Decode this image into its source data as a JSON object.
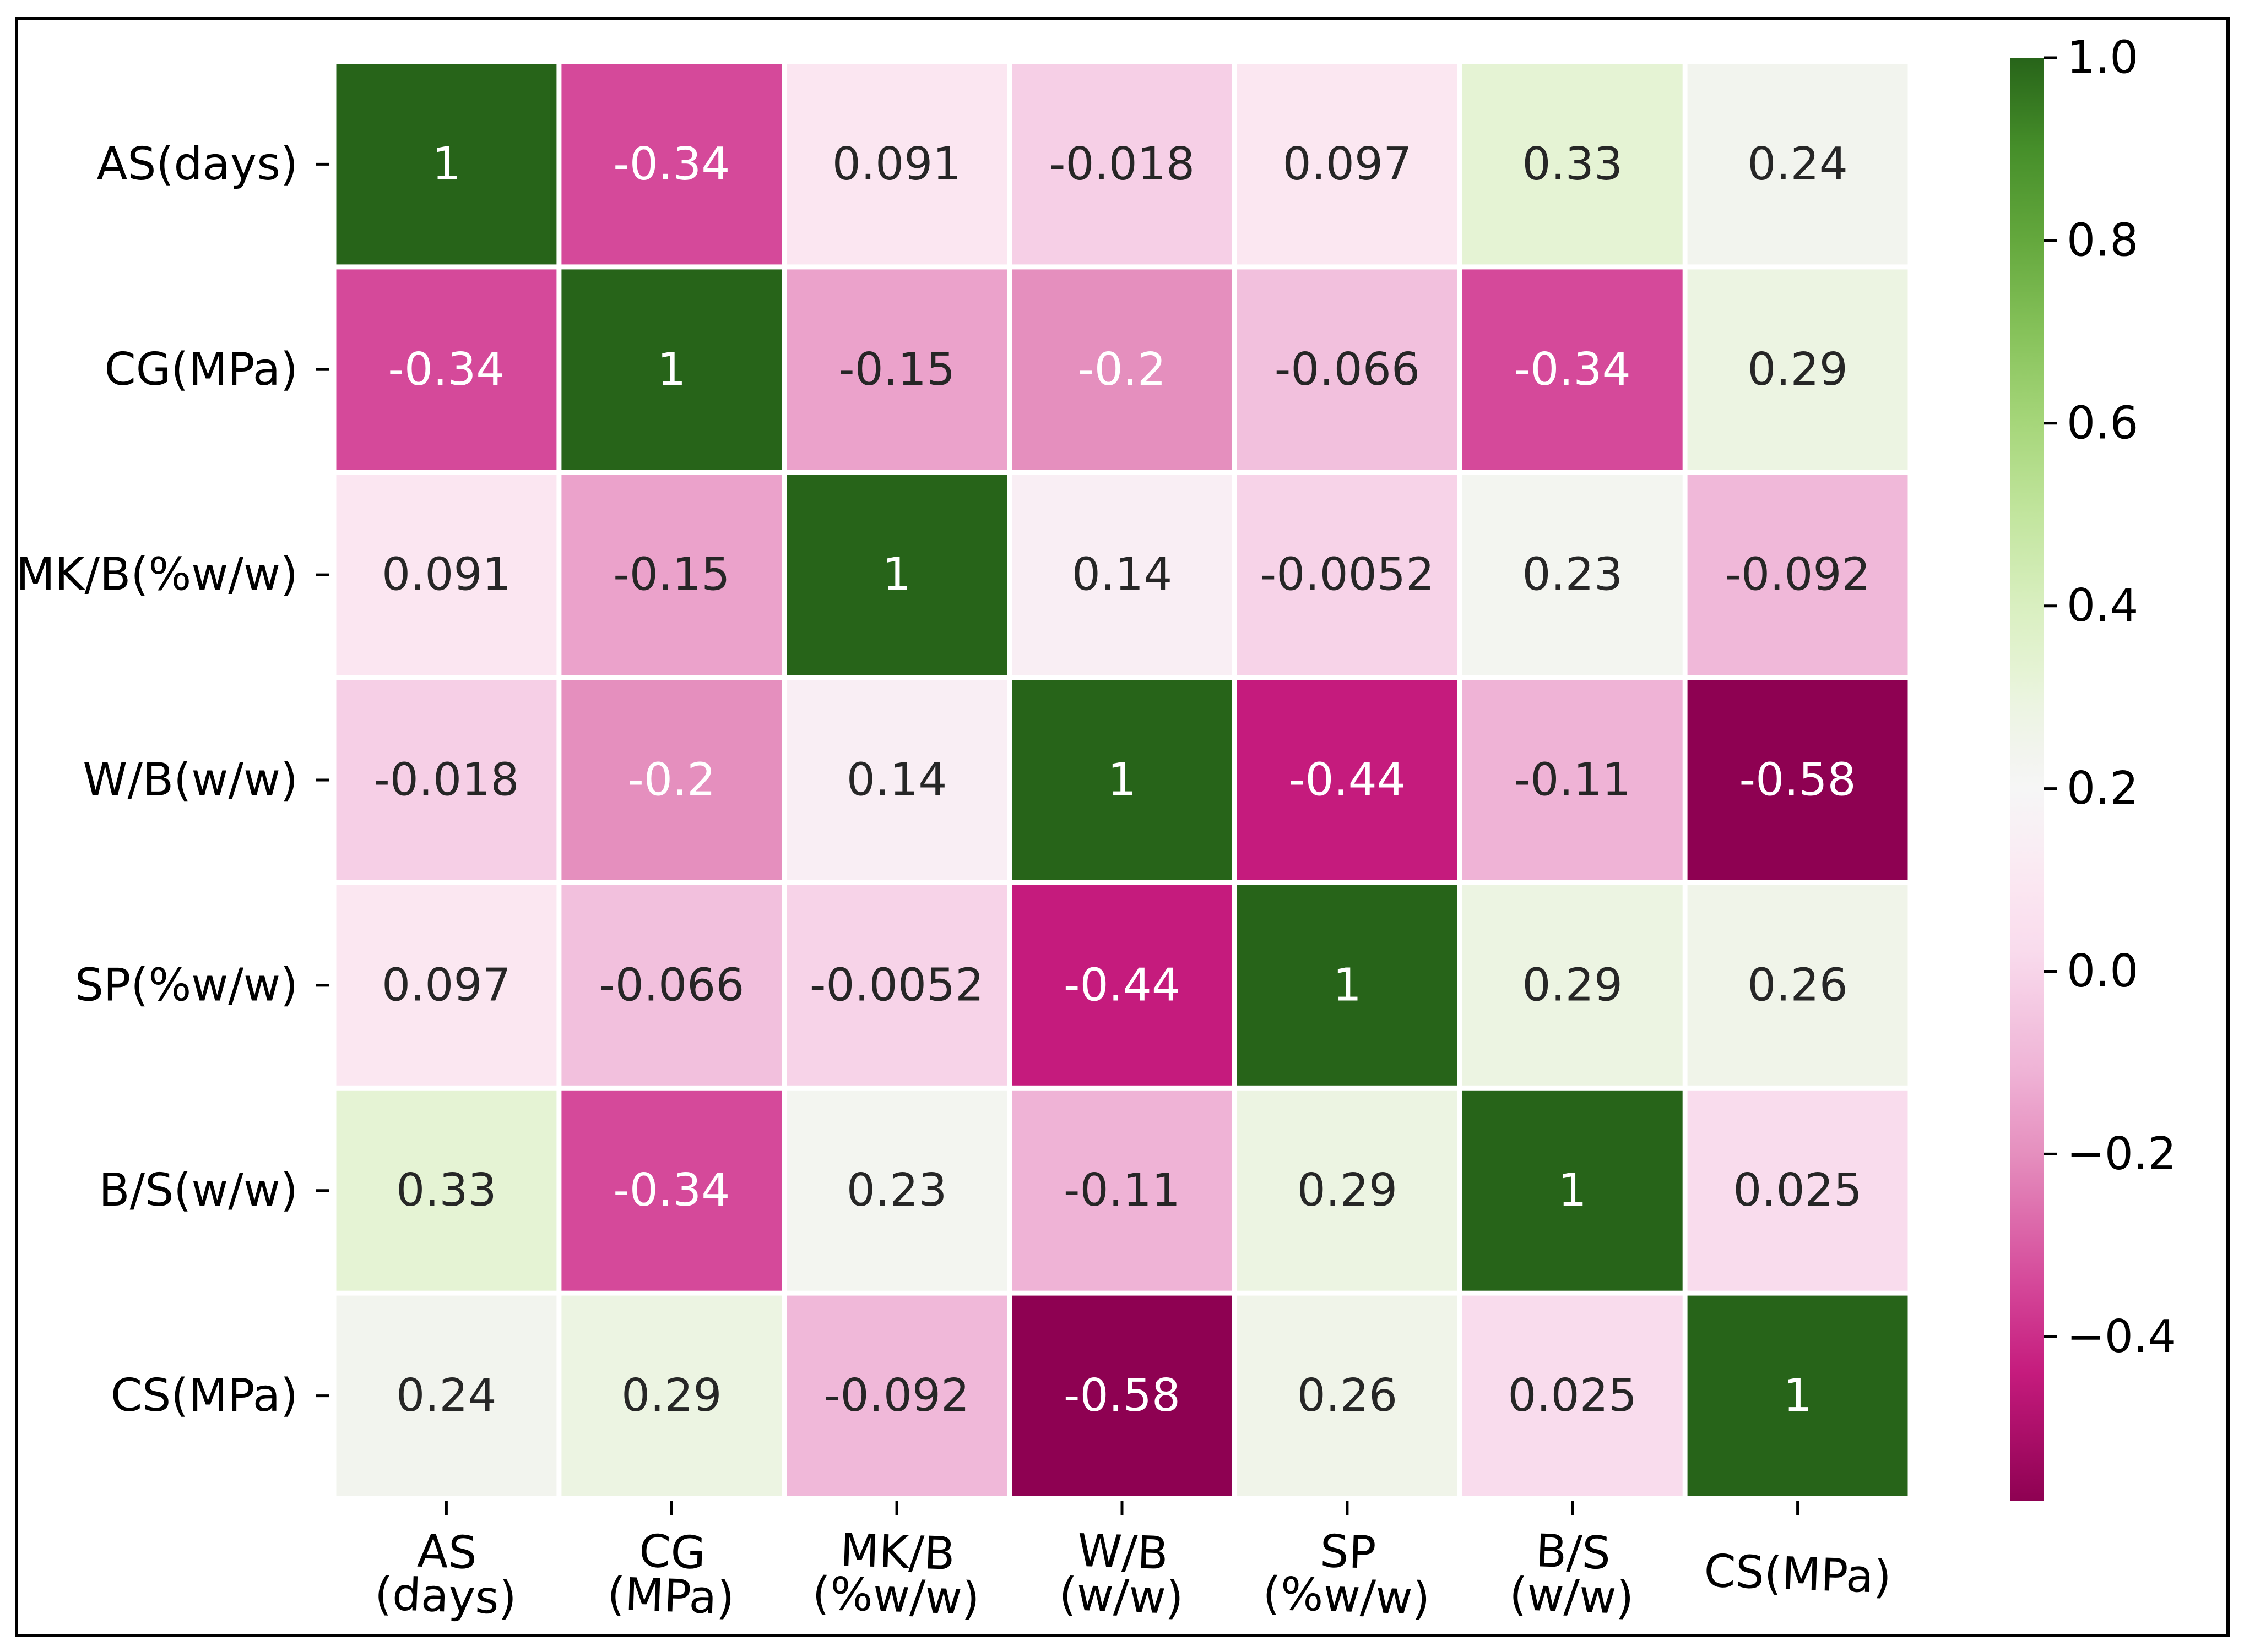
{
  "chart_data": {
    "type": "heatmap",
    "title": "",
    "xlabel": "",
    "ylabel": "",
    "row_labels": [
      "AS(days)",
      "CG(MPa)",
      "MK/B(%w/w)",
      "W/B(w/w)",
      "SP(%w/w)",
      "B/S(w/w)",
      "CS(MPa)"
    ],
    "col_labels": [
      [
        "AS",
        "(days)"
      ],
      [
        "CG",
        "(MPa)"
      ],
      [
        "MK/B",
        "(%w/w)"
      ],
      [
        "W/B",
        "(w/w)"
      ],
      [
        "SP",
        "(%w/w)"
      ],
      [
        "B/S",
        "(w/w)"
      ],
      [
        "CS(MPa)"
      ]
    ],
    "values": [
      [
        1,
        -0.34,
        0.091,
        -0.018,
        0.097,
        0.33,
        0.24
      ],
      [
        -0.34,
        1,
        -0.15,
        -0.2,
        -0.066,
        -0.34,
        0.29
      ],
      [
        0.091,
        -0.15,
        1,
        0.14,
        -0.0052,
        0.23,
        -0.092
      ],
      [
        -0.018,
        -0.2,
        0.14,
        1,
        -0.44,
        -0.11,
        -0.58
      ],
      [
        0.097,
        -0.066,
        -0.0052,
        -0.44,
        1,
        0.29,
        0.26
      ],
      [
        0.33,
        -0.34,
        0.23,
        -0.11,
        0.29,
        1,
        0.025
      ],
      [
        0.24,
        0.29,
        -0.092,
        -0.58,
        0.26,
        0.025,
        1
      ]
    ],
    "annotations": [
      [
        "1",
        "-0.34",
        "0.091",
        "-0.018",
        "0.097",
        "0.33",
        "0.24"
      ],
      [
        "-0.34",
        "1",
        "-0.15",
        "-0.2",
        "-0.066",
        "-0.34",
        "0.29"
      ],
      [
        "0.091",
        "-0.15",
        "1",
        "0.14",
        "-0.0052",
        "0.23",
        "-0.092"
      ],
      [
        "-0.018",
        "-0.2",
        "0.14",
        "1",
        "-0.44",
        "-0.11",
        "-0.58"
      ],
      [
        "0.097",
        "-0.066",
        "-0.0052",
        "-0.44",
        "1",
        "0.29",
        "0.26"
      ],
      [
        "0.33",
        "-0.34",
        "0.23",
        "-0.11",
        "0.29",
        "1",
        "0.025"
      ],
      [
        "0.24",
        "0.29",
        "-0.092",
        "-0.58",
        "0.26",
        "0.025",
        "1"
      ]
    ],
    "colormap": "PiYG",
    "colormap_stops": [
      {
        "v": -0.58,
        "color": "#8e0152"
      },
      {
        "v": -0.44,
        "color": "#c51b7d"
      },
      {
        "v": -0.34,
        "color": "#d5499a"
      },
      {
        "v": -0.2,
        "color": "#e58fbe"
      },
      {
        "v": -0.15,
        "color": "#eba2cb"
      },
      {
        "v": -0.11,
        "color": "#efb3d6"
      },
      {
        "v": -0.066,
        "color": "#f2c0dd"
      },
      {
        "v": -0.018,
        "color": "#f6cfe6"
      },
      {
        "v": 0.025,
        "color": "#f9dced"
      },
      {
        "v": 0.091,
        "color": "#fbe6f1"
      },
      {
        "v": 0.14,
        "color": "#f9eef4"
      },
      {
        "v": 0.2,
        "color": "#f6f6f6"
      },
      {
        "v": 0.24,
        "color": "#f2f4ee"
      },
      {
        "v": 0.29,
        "color": "#ecf4e2"
      },
      {
        "v": 0.33,
        "color": "#e5f3d4"
      },
      {
        "v": 0.4,
        "color": "#d9efc0"
      },
      {
        "v": 0.5,
        "color": "#c2e59e"
      },
      {
        "v": 0.6,
        "color": "#a6d67a"
      },
      {
        "v": 0.7,
        "color": "#86c25a"
      },
      {
        "v": 0.8,
        "color": "#64a83d"
      },
      {
        "v": 0.9,
        "color": "#468f2a"
      },
      {
        "v": 1.0,
        "color": "#276419"
      }
    ],
    "dark_text_threshold": [
      -0.19,
      0.6
    ],
    "light_text_color": "#ffffff",
    "dark_text_color": "#262626",
    "cell_gap_color": "#ffffff",
    "colorbar": {
      "vmin": -0.58,
      "vmax": 1.0,
      "ticks": [
        1.0,
        0.8,
        0.6,
        0.4,
        0.2,
        0.0,
        -0.2,
        -0.4
      ],
      "tick_labels": [
        "1.0",
        "0.8",
        "0.6",
        "0.4",
        "0.2",
        "0.0",
        "−0.2",
        "−0.4"
      ]
    }
  }
}
